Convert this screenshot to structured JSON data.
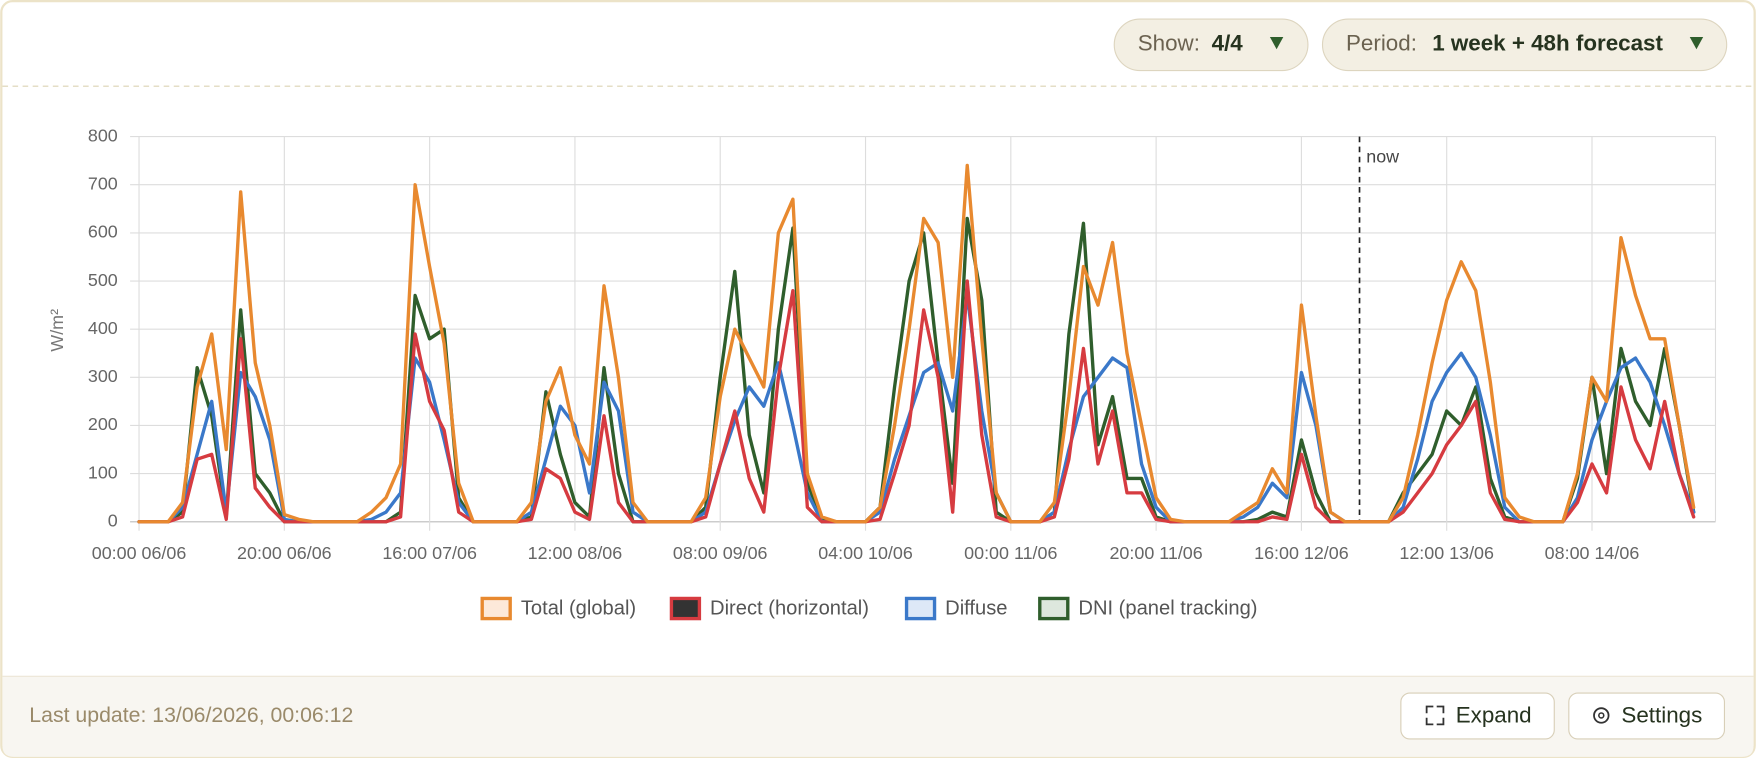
{
  "ui": {
    "show_label": "Show:",
    "show_value": "4/4",
    "period_label": "Period:",
    "period_value": "1 week + 48h forecast",
    "last_update": "Last update: 13/06/2026, 00:06:12",
    "expand": "Expand",
    "settings": "Settings"
  },
  "chart_data": {
    "type": "line",
    "y_label": "W/m²",
    "ylim": [
      0,
      800
    ],
    "yticks": [
      0,
      100,
      200,
      300,
      400,
      500,
      600,
      700,
      800
    ],
    "grid": true,
    "legend": "bottom",
    "annotations": [
      {
        "text": "now",
        "at": 84
      }
    ],
    "categories": [
      "00:00 06/06",
      null,
      null,
      null,
      null,
      null,
      null,
      null,
      null,
      null,
      "20:00 06/06",
      null,
      null,
      null,
      null,
      null,
      null,
      null,
      null,
      null,
      "16:00 07/06",
      null,
      null,
      null,
      null,
      null,
      null,
      null,
      null,
      null,
      "12:00 08/06",
      null,
      null,
      null,
      null,
      null,
      null,
      null,
      null,
      null,
      "08:00 09/06",
      null,
      null,
      null,
      null,
      null,
      null,
      null,
      null,
      null,
      "04:00 10/06",
      null,
      null,
      null,
      null,
      null,
      null,
      null,
      null,
      null,
      "00:00 11/06",
      null,
      null,
      null,
      null,
      null,
      null,
      null,
      null,
      null,
      "20:00 11/06",
      null,
      null,
      null,
      null,
      null,
      null,
      null,
      null,
      null,
      "16:00 12/06",
      null,
      null,
      null,
      null,
      null,
      null,
      null,
      null,
      null,
      "12:00 13/06",
      null,
      null,
      null,
      null,
      null,
      null,
      null,
      null,
      null,
      "08:00 14/06",
      null,
      null,
      null,
      null,
      null,
      null,
      null
    ],
    "series": [
      {
        "name": "Total (global)",
        "color": "#e8892f",
        "legend_fill": "#fde9d9",
        "values": [
          0,
          0,
          0,
          40,
          280,
          390,
          150,
          685,
          330,
          200,
          15,
          5,
          0,
          0,
          0,
          0,
          20,
          50,
          120,
          700,
          530,
          370,
          80,
          0,
          0,
          0,
          0,
          40,
          250,
          320,
          180,
          120,
          490,
          300,
          40,
          0,
          0,
          0,
          0,
          50,
          260,
          400,
          340,
          280,
          600,
          670,
          100,
          10,
          0,
          0,
          0,
          30,
          200,
          400,
          630,
          580,
          300,
          740,
          380,
          60,
          0,
          0,
          0,
          40,
          260,
          530,
          450,
          580,
          350,
          200,
          50,
          5,
          0,
          0,
          0,
          0,
          20,
          40,
          110,
          60,
          450,
          220,
          20,
          0,
          0,
          0,
          0,
          50,
          180,
          330,
          460,
          540,
          480,
          290,
          50,
          10,
          0,
          0,
          0,
          100,
          300,
          250,
          590,
          470,
          380,
          380,
          200,
          30
        ]
      },
      {
        "name": "Direct (horizontal)",
        "color": "#d63b40",
        "legend_fill": "#333333",
        "values": [
          0,
          0,
          0,
          10,
          130,
          140,
          5,
          380,
          70,
          30,
          0,
          0,
          0,
          0,
          0,
          0,
          0,
          0,
          10,
          390,
          250,
          190,
          20,
          0,
          0,
          0,
          0,
          5,
          110,
          90,
          20,
          5,
          220,
          40,
          0,
          0,
          0,
          0,
          0,
          10,
          120,
          230,
          90,
          20,
          300,
          480,
          30,
          0,
          0,
          0,
          0,
          5,
          100,
          200,
          440,
          300,
          20,
          500,
          180,
          10,
          0,
          0,
          0,
          10,
          130,
          360,
          120,
          230,
          60,
          60,
          5,
          0,
          0,
          0,
          0,
          0,
          0,
          0,
          10,
          5,
          140,
          30,
          0,
          0,
          0,
          0,
          0,
          20,
          60,
          100,
          160,
          200,
          250,
          60,
          5,
          0,
          0,
          0,
          0,
          40,
          120,
          60,
          280,
          170,
          110,
          250,
          100,
          10
        ]
      },
      {
        "name": "Diffuse",
        "color": "#3a78c9",
        "legend_fill": "#dde8f7",
        "values": [
          0,
          0,
          0,
          30,
          140,
          250,
          20,
          310,
          260,
          170,
          5,
          0,
          0,
          0,
          0,
          0,
          5,
          20,
          60,
          340,
          290,
          170,
          40,
          0,
          0,
          0,
          0,
          20,
          130,
          240,
          200,
          60,
          290,
          230,
          20,
          0,
          0,
          0,
          0,
          20,
          120,
          210,
          280,
          240,
          330,
          200,
          60,
          0,
          0,
          0,
          0,
          20,
          130,
          220,
          310,
          330,
          230,
          470,
          230,
          60,
          0,
          0,
          0,
          20,
          150,
          260,
          300,
          340,
          320,
          120,
          30,
          0,
          0,
          0,
          0,
          0,
          10,
          30,
          80,
          50,
          310,
          200,
          20,
          0,
          0,
          0,
          0,
          30,
          130,
          250,
          310,
          350,
          300,
          180,
          30,
          0,
          0,
          0,
          0,
          50,
          170,
          250,
          320,
          340,
          290,
          200,
          100,
          20
        ]
      },
      {
        "name": "DNI (panel tracking)",
        "color": "#2f5e2c",
        "legend_fill": "#dde7dd",
        "values": [
          0,
          0,
          0,
          20,
          320,
          220,
          10,
          440,
          100,
          60,
          0,
          0,
          0,
          0,
          0,
          0,
          0,
          0,
          20,
          470,
          380,
          400,
          50,
          0,
          0,
          0,
          0,
          10,
          270,
          140,
          40,
          10,
          320,
          100,
          0,
          0,
          0,
          0,
          0,
          30,
          300,
          520,
          180,
          60,
          400,
          610,
          80,
          5,
          0,
          0,
          0,
          30,
          280,
          500,
          600,
          330,
          80,
          630,
          460,
          20,
          0,
          0,
          0,
          20,
          390,
          620,
          160,
          260,
          90,
          90,
          10,
          0,
          0,
          0,
          0,
          0,
          0,
          5,
          20,
          10,
          170,
          60,
          0,
          0,
          0,
          0,
          0,
          60,
          100,
          140,
          230,
          200,
          280,
          90,
          10,
          0,
          0,
          0,
          0,
          90,
          300,
          100,
          360,
          250,
          200,
          360,
          200,
          20
        ]
      }
    ]
  }
}
